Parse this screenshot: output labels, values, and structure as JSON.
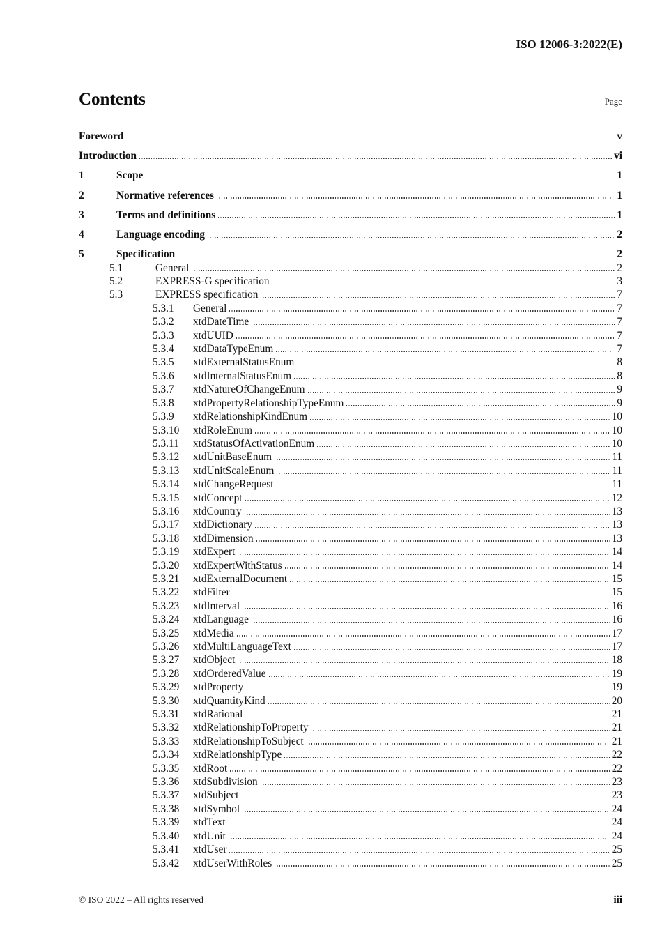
{
  "header": {
    "document_id": "ISO 12006-3:2022(E)"
  },
  "contents": {
    "title": "Contents",
    "page_label": "Page"
  },
  "toc": {
    "entries": [
      {
        "level": 0,
        "number": "",
        "title": "Foreword",
        "page": "v"
      },
      {
        "level": 0,
        "number": "",
        "title": "Introduction",
        "page": "vi"
      },
      {
        "level": 1,
        "number": "1",
        "title": "Scope",
        "page": "1"
      },
      {
        "level": 1,
        "number": "2",
        "title": "Normative references",
        "page": "1"
      },
      {
        "level": 1,
        "number": "3",
        "title": "Terms and definitions",
        "page": "1"
      },
      {
        "level": 1,
        "number": "4",
        "title": "Language encoding",
        "page": "2"
      },
      {
        "level": 1,
        "number": "5",
        "title": "Specification",
        "page": "2"
      },
      {
        "level": 2,
        "number": "5.1",
        "title": "General",
        "page": "2"
      },
      {
        "level": 2,
        "number": "5.2",
        "title": "EXPRESS-G specification",
        "page": "3"
      },
      {
        "level": 2,
        "number": "5.3",
        "title": "EXPRESS specification",
        "page": "7"
      },
      {
        "level": 3,
        "number": "5.3.1",
        "title": "General",
        "page": "7"
      },
      {
        "level": 3,
        "number": "5.3.2",
        "title": "xtdDateTime",
        "page": "7"
      },
      {
        "level": 3,
        "number": "5.3.3",
        "title": "xtdUUID",
        "page": "7"
      },
      {
        "level": 3,
        "number": "5.3.4",
        "title": "xtdDataTypeEnum",
        "page": "7"
      },
      {
        "level": 3,
        "number": "5.3.5",
        "title": "xtdExternalStatusEnum",
        "page": "8"
      },
      {
        "level": 3,
        "number": "5.3.6",
        "title": "xtdInternalStatusEnum",
        "page": "8"
      },
      {
        "level": 3,
        "number": "5.3.7",
        "title": "xtdNatureOfChangeEnum",
        "page": "9"
      },
      {
        "level": 3,
        "number": "5.3.8",
        "title": "xtdPropertyRelationshipTypeEnum",
        "page": "9"
      },
      {
        "level": 3,
        "number": "5.3.9",
        "title": "xtdRelationshipKindEnum",
        "page": "10"
      },
      {
        "level": 3,
        "number": "5.3.10",
        "title": "xtdRoleEnum",
        "page": "10"
      },
      {
        "level": 3,
        "number": "5.3.11",
        "title": "xtdStatusOfActivationEnum",
        "page": "10"
      },
      {
        "level": 3,
        "number": "5.3.12",
        "title": "xtdUnitBaseEnum",
        "page": "11"
      },
      {
        "level": 3,
        "number": "5.3.13",
        "title": "xtdUnitScaleEnum",
        "page": "11"
      },
      {
        "level": 3,
        "number": "5.3.14",
        "title": "xtdChangeRequest",
        "page": "11"
      },
      {
        "level": 3,
        "number": "5.3.15",
        "title": "xtdConcept",
        "page": "12"
      },
      {
        "level": 3,
        "number": "5.3.16",
        "title": "xtdCountry",
        "page": "13"
      },
      {
        "level": 3,
        "number": "5.3.17",
        "title": "xtdDictionary",
        "page": "13"
      },
      {
        "level": 3,
        "number": "5.3.18",
        "title": "xtdDimension",
        "page": "13"
      },
      {
        "level": 3,
        "number": "5.3.19",
        "title": "xtdExpert",
        "page": "14"
      },
      {
        "level": 3,
        "number": "5.3.20",
        "title": "xtdExpertWithStatus",
        "page": "14"
      },
      {
        "level": 3,
        "number": "5.3.21",
        "title": "xtdExternalDocument",
        "page": "15"
      },
      {
        "level": 3,
        "number": "5.3.22",
        "title": "xtdFilter",
        "page": "15"
      },
      {
        "level": 3,
        "number": "5.3.23",
        "title": "xtdInterval",
        "page": "16"
      },
      {
        "level": 3,
        "number": "5.3.24",
        "title": "xtdLanguage",
        "page": "16"
      },
      {
        "level": 3,
        "number": "5.3.25",
        "title": "xtdMedia",
        "page": "17"
      },
      {
        "level": 3,
        "number": "5.3.26",
        "title": "xtdMultiLanguageText",
        "page": "17"
      },
      {
        "level": 3,
        "number": "5.3.27",
        "title": "xtdObject",
        "page": "18"
      },
      {
        "level": 3,
        "number": "5.3.28",
        "title": "xtdOrderedValue",
        "page": "19"
      },
      {
        "level": 3,
        "number": "5.3.29",
        "title": "xtdProperty",
        "page": "19"
      },
      {
        "level": 3,
        "number": "5.3.30",
        "title": "xtdQuantityKind",
        "page": "20"
      },
      {
        "level": 3,
        "number": "5.3.31",
        "title": "xtdRational",
        "page": "21"
      },
      {
        "level": 3,
        "number": "5.3.32",
        "title": "xtdRelationshipToProperty",
        "page": "21"
      },
      {
        "level": 3,
        "number": "5.3.33",
        "title": "xtdRelationshipToSubject",
        "page": "21"
      },
      {
        "level": 3,
        "number": "5.3.34",
        "title": "xtdRelationshipType",
        "page": "22"
      },
      {
        "level": 3,
        "number": "5.3.35",
        "title": "xtdRoot",
        "page": "22"
      },
      {
        "level": 3,
        "number": "5.3.36",
        "title": "xtdSubdivision",
        "page": "23"
      },
      {
        "level": 3,
        "number": "5.3.37",
        "title": "xtdSubject",
        "page": "23"
      },
      {
        "level": 3,
        "number": "5.3.38",
        "title": "xtdSymbol",
        "page": "24"
      },
      {
        "level": 3,
        "number": "5.3.39",
        "title": "xtdText",
        "page": "24"
      },
      {
        "level": 3,
        "number": "5.3.40",
        "title": "xtdUnit",
        "page": "24"
      },
      {
        "level": 3,
        "number": "5.3.41",
        "title": "xtdUser",
        "page": "25"
      },
      {
        "level": 3,
        "number": "5.3.42",
        "title": "xtdUserWithRoles",
        "page": "25"
      }
    ]
  },
  "footer": {
    "copyright": "© ISO 2022 – All rights reserved",
    "page_number": "iii"
  }
}
